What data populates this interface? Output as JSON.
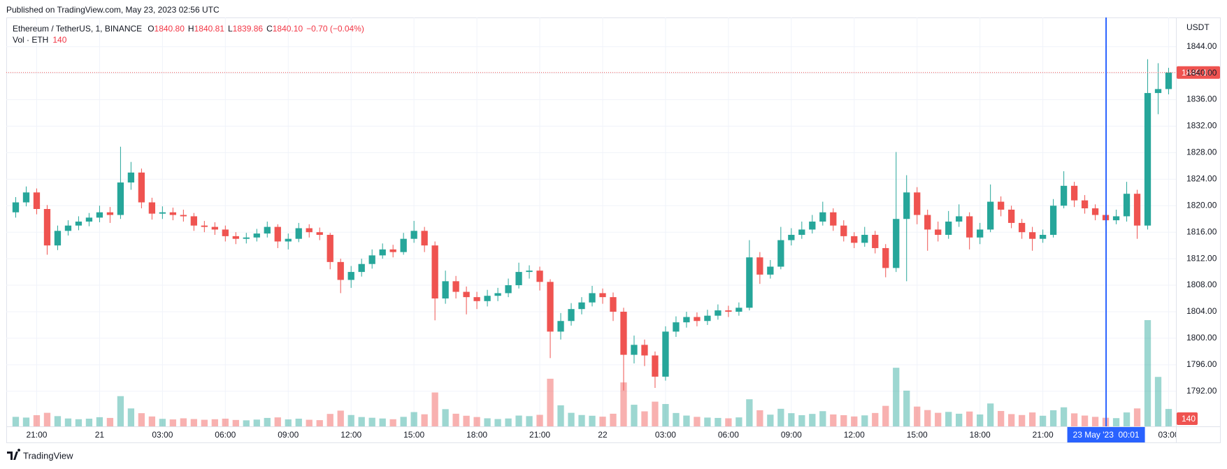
{
  "chart_data": {
    "type": "candlestick",
    "published": "Published on TradingView.com, May 23, 2023 02:56 UTC",
    "symbol": "Ethereum / TetherUS, 1, BINANCE",
    "legend": [
      {
        "key": "O",
        "text": "1840.80"
      },
      {
        "key": "H",
        "text": "1840.81"
      },
      {
        "key": "L",
        "text": "1839.86"
      },
      {
        "key": "C",
        "text": "1840.10"
      }
    ],
    "change": "−0.70 (−0.04%)",
    "legend_color": "#f23645",
    "volume_title": "Vol · ETH",
    "volume_last": 140,
    "axis_unit": "USDT",
    "brand": "TradingView",
    "up_color": "#26a69a",
    "down_color": "#ef5350",
    "grid": true,
    "xlim": [
      19.55,
      75.35
    ],
    "xticks": [
      {
        "value": 21,
        "label": "21:00"
      },
      {
        "value": 24,
        "label": "21"
      },
      {
        "value": 27,
        "label": "03:00"
      },
      {
        "value": 30,
        "label": "06:00"
      },
      {
        "value": 33,
        "label": "09:00"
      },
      {
        "value": 36,
        "label": "12:00"
      },
      {
        "value": 39,
        "label": "15:00"
      },
      {
        "value": 42,
        "label": "18:00"
      },
      {
        "value": 45,
        "label": "21:00"
      },
      {
        "value": 48,
        "label": "22"
      },
      {
        "value": 51,
        "label": "03:00"
      },
      {
        "value": 54,
        "label": "06:00"
      },
      {
        "value": 57,
        "label": "09:00"
      },
      {
        "value": 60,
        "label": "12:00"
      },
      {
        "value": 63,
        "label": "15:00"
      },
      {
        "value": 66,
        "label": "18:00"
      },
      {
        "value": 69,
        "label": "21:00"
      },
      {
        "value": 75,
        "label": "03:00"
      }
    ],
    "ylim": [
      1786.7,
      1848.4
    ],
    "yticks": [
      {
        "value": 1792,
        "label": "1792.00"
      },
      {
        "value": 1796,
        "label": "1796.00"
      },
      {
        "value": 1800,
        "label": "1800.00"
      },
      {
        "value": 1804,
        "label": "1804.00"
      },
      {
        "value": 1808,
        "label": "1808.00"
      },
      {
        "value": 1812,
        "label": "1812.00"
      },
      {
        "value": 1816,
        "label": "1816.00"
      },
      {
        "value": 1820,
        "label": "1820.00"
      },
      {
        "value": 1824,
        "label": "1824.00"
      },
      {
        "value": 1828,
        "label": "1828.00"
      },
      {
        "value": 1832,
        "label": "1832.00"
      },
      {
        "value": 1836,
        "label": "1836.00"
      },
      {
        "value": 1840,
        "label": "1840.00"
      },
      {
        "value": 1844,
        "label": "1844.00"
      }
    ],
    "last_price": {
      "value": 1840.1,
      "label": "1840.10"
    },
    "crosshair": {
      "value": 72.017,
      "label": "23 May '23  00:01"
    },
    "crosshair_color": "#2962ff",
    "x": [
      20,
      20.5,
      21,
      21.5,
      22,
      22.5,
      23,
      23.5,
      24,
      24.5,
      25,
      25.5,
      26,
      26.5,
      27,
      27.5,
      28,
      28.5,
      29,
      29.5,
      30,
      30.5,
      31,
      31.5,
      32,
      32.5,
      33,
      33.5,
      34,
      34.5,
      35,
      35.5,
      36,
      36.5,
      37,
      37.5,
      38,
      38.5,
      39,
      39.5,
      40,
      40.5,
      41,
      41.5,
      42,
      42.5,
      43,
      43.5,
      44,
      44.5,
      45,
      45.5,
      46,
      46.5,
      47,
      47.5,
      48,
      48.5,
      49,
      49.5,
      50,
      50.5,
      51,
      51.5,
      52,
      52.5,
      53,
      53.5,
      54,
      54.5,
      55,
      55.5,
      56,
      56.5,
      57,
      57.5,
      58,
      58.5,
      59,
      59.5,
      60,
      60.5,
      61,
      61.5,
      62,
      62.5,
      63,
      63.5,
      64,
      64.5,
      65,
      65.5,
      66,
      66.5,
      67,
      67.5,
      68,
      68.5,
      69,
      69.5,
      70,
      70.5,
      71,
      71.5,
      72,
      72.5,
      73,
      73.5,
      74,
      74.5,
      75
    ],
    "open": [
      1819.0,
      1820.5,
      1822.0,
      1819.5,
      1814.0,
      1816.2,
      1817.0,
      1817.6,
      1818.2,
      1819.0,
      1818.6,
      1823.5,
      1825.0,
      1820.5,
      1818.8,
      1819.0,
      1818.6,
      1818.4,
      1817.0,
      1816.8,
      1816.4,
      1815.4,
      1815.0,
      1815.2,
      1815.8,
      1816.8,
      1814.6,
      1815.0,
      1816.6,
      1816.0,
      1815.6,
      1811.5,
      1808.8,
      1810.0,
      1811.2,
      1812.5,
      1813.4,
      1813.0,
      1815.0,
      1816.2,
      1814.0,
      1806.0,
      1808.6,
      1807.0,
      1806.2,
      1805.6,
      1806.4,
      1806.8,
      1808.0,
      1810.0,
      1810.2,
      1808.5,
      1801.0,
      1802.6,
      1804.4,
      1805.4,
      1806.8,
      1806.2,
      1804.0,
      1797.5,
      1799.0,
      1797.4,
      1794.2,
      1801.0,
      1802.4,
      1803.2,
      1802.6,
      1803.4,
      1804.2,
      1804.0,
      1804.6,
      1812.2,
      1809.6,
      1810.8,
      1814.8,
      1815.6,
      1816.4,
      1817.6,
      1819.0,
      1817.0,
      1815.4,
      1814.4,
      1815.6,
      1813.6,
      1810.6,
      1818.0,
      1822.0,
      1818.6,
      1816.4,
      1815.6,
      1817.6,
      1818.4,
      1815.2,
      1816.4,
      1820.6,
      1819.4,
      1817.4,
      1816.0,
      1815.0,
      1815.6,
      1820.0,
      1823.0,
      1820.8,
      1819.6,
      1818.6,
      1817.8,
      1818.4,
      1821.8,
      1817.0,
      1837.0,
      1837.6
    ],
    "high": [
      1821.3,
      1822.9,
      1822.6,
      1820.1,
      1817.0,
      1817.8,
      1818.4,
      1818.9,
      1820.0,
      1819.8,
      1828.9,
      1826.6,
      1825.6,
      1821.2,
      1819.9,
      1819.7,
      1819.4,
      1818.9,
      1817.7,
      1817.5,
      1817.0,
      1816.0,
      1815.9,
      1816.5,
      1817.6,
      1817.2,
      1815.8,
      1817.4,
      1817.2,
      1816.7,
      1815.9,
      1812.0,
      1810.9,
      1812.0,
      1813.4,
      1814.3,
      1814.1,
      1815.9,
      1817.7,
      1816.8,
      1814.6,
      1810.2,
      1809.4,
      1807.8,
      1807.0,
      1807.3,
      1807.6,
      1809.0,
      1811.4,
      1811.0,
      1810.8,
      1808.9,
      1803.8,
      1805.3,
      1806.2,
      1807.9,
      1807.5,
      1806.9,
      1804.6,
      1800.4,
      1799.8,
      1798.0,
      1801.8,
      1803.3,
      1804.0,
      1803.9,
      1804.3,
      1805.1,
      1804.9,
      1805.4,
      1814.8,
      1813.0,
      1811.8,
      1816.8,
      1816.6,
      1817.6,
      1818.6,
      1820.6,
      1819.6,
      1817.8,
      1816.0,
      1816.8,
      1816.2,
      1814.2,
      1828.1,
      1824.6,
      1822.8,
      1819.4,
      1817.6,
      1819.2,
      1820.2,
      1819.0,
      1817.4,
      1823.2,
      1821.4,
      1820.0,
      1818.0,
      1816.8,
      1816.4,
      1821.0,
      1825.2,
      1823.6,
      1821.6,
      1820.2,
      1819.2,
      1819.4,
      1823.6,
      1822.4,
      1842.1,
      1841.5,
      1840.8
    ],
    "low": [
      1818.2,
      1819.9,
      1818.7,
      1812.6,
      1813.3,
      1815.5,
      1816.3,
      1816.9,
      1817.5,
      1817.4,
      1818.0,
      1822.4,
      1819.6,
      1817.9,
      1818.0,
      1817.8,
      1817.6,
      1816.2,
      1816.0,
      1815.6,
      1814.6,
      1814.2,
      1814.3,
      1814.6,
      1815.2,
      1813.6,
      1813.4,
      1814.5,
      1815.2,
      1814.8,
      1810.4,
      1806.8,
      1807.6,
      1809.3,
      1810.5,
      1812.0,
      1812.2,
      1812.6,
      1814.4,
      1813.0,
      1802.7,
      1805.2,
      1806.0,
      1803.6,
      1804.4,
      1804.8,
      1805.6,
      1806.2,
      1807.5,
      1809.0,
      1807.2,
      1797.0,
      1799.8,
      1801.9,
      1803.6,
      1804.8,
      1805.2,
      1802.6,
      1792.1,
      1796.2,
      1795.8,
      1792.5,
      1793.6,
      1800.2,
      1801.6,
      1801.8,
      1802.0,
      1802.8,
      1803.2,
      1803.4,
      1804.2,
      1808.2,
      1809.0,
      1810.4,
      1814.0,
      1815.0,
      1815.8,
      1817.0,
      1816.2,
      1814.6,
      1813.6,
      1813.8,
      1812.8,
      1809.2,
      1810.0,
      1808.6,
      1817.2,
      1813.2,
      1814.6,
      1815.0,
      1816.8,
      1813.4,
      1814.2,
      1816.0,
      1818.4,
      1816.6,
      1815.0,
      1813.2,
      1814.4,
      1815.2,
      1819.6,
      1819.8,
      1818.8,
      1817.8,
      1817.0,
      1817.2,
      1817.6,
      1815.0,
      1816.4,
      1833.8,
      1836.8
    ],
    "close": [
      1820.5,
      1822.0,
      1819.5,
      1814.0,
      1816.2,
      1817.0,
      1817.6,
      1818.2,
      1819.0,
      1818.6,
      1823.5,
      1825.0,
      1820.5,
      1818.8,
      1819.0,
      1818.6,
      1818.4,
      1817.0,
      1816.8,
      1816.4,
      1815.4,
      1815.0,
      1815.2,
      1815.8,
      1816.8,
      1814.6,
      1815.0,
      1816.6,
      1816.0,
      1815.6,
      1811.5,
      1808.8,
      1810.0,
      1811.2,
      1812.5,
      1813.4,
      1813.0,
      1815.0,
      1816.2,
      1814.0,
      1806.0,
      1808.6,
      1807.0,
      1806.2,
      1805.6,
      1806.4,
      1806.8,
      1808.0,
      1810.0,
      1810.2,
      1808.5,
      1801.0,
      1802.6,
      1804.4,
      1805.4,
      1806.8,
      1806.2,
      1804.0,
      1797.5,
      1799.0,
      1797.4,
      1794.2,
      1801.0,
      1802.4,
      1803.2,
      1802.6,
      1803.4,
      1804.2,
      1804.0,
      1804.6,
      1812.2,
      1809.6,
      1810.8,
      1814.8,
      1815.6,
      1816.4,
      1817.6,
      1819.0,
      1817.0,
      1815.4,
      1814.4,
      1815.6,
      1813.6,
      1810.6,
      1818.0,
      1822.0,
      1818.6,
      1816.4,
      1815.6,
      1817.6,
      1818.4,
      1815.2,
      1816.4,
      1820.6,
      1819.4,
      1817.4,
      1816.0,
      1815.0,
      1815.6,
      1820.0,
      1823.0,
      1820.8,
      1819.6,
      1818.6,
      1817.8,
      1818.4,
      1821.8,
      1817.0,
      1837.0,
      1837.6,
      1840.1
    ],
    "volume": [
      5200,
      4800,
      6100,
      7400,
      5600,
      4300,
      3900,
      4200,
      5000,
      4600,
      16500,
      9800,
      7200,
      5400,
      4100,
      3800,
      4400,
      4000,
      3600,
      3900,
      4200,
      3500,
      3300,
      3700,
      4600,
      4900,
      3800,
      4200,
      3600,
      3400,
      6800,
      8600,
      6200,
      5100,
      4700,
      4300,
      3900,
      5200,
      7800,
      6600,
      18500,
      9400,
      6900,
      5800,
      5100,
      4400,
      4000,
      4300,
      5900,
      5600,
      6300,
      26000,
      11500,
      7400,
      6200,
      5800,
      5300,
      6900,
      24000,
      11800,
      8200,
      13500,
      12200,
      7300,
      5900,
      5200,
      4800,
      4600,
      4400,
      4900,
      14800,
      8800,
      6400,
      9600,
      7200,
      6100,
      6800,
      8300,
      6500,
      6100,
      5400,
      6000,
      7300,
      11200,
      32000,
      19500,
      10800,
      8900,
      7400,
      7900,
      6900,
      8100,
      6500,
      12500,
      8400,
      6700,
      6200,
      7600,
      5800,
      8800,
      10400,
      7100,
      5900,
      5200,
      4700,
      4500,
      7600,
      9800,
      58000,
      27000,
      9500
    ]
  }
}
